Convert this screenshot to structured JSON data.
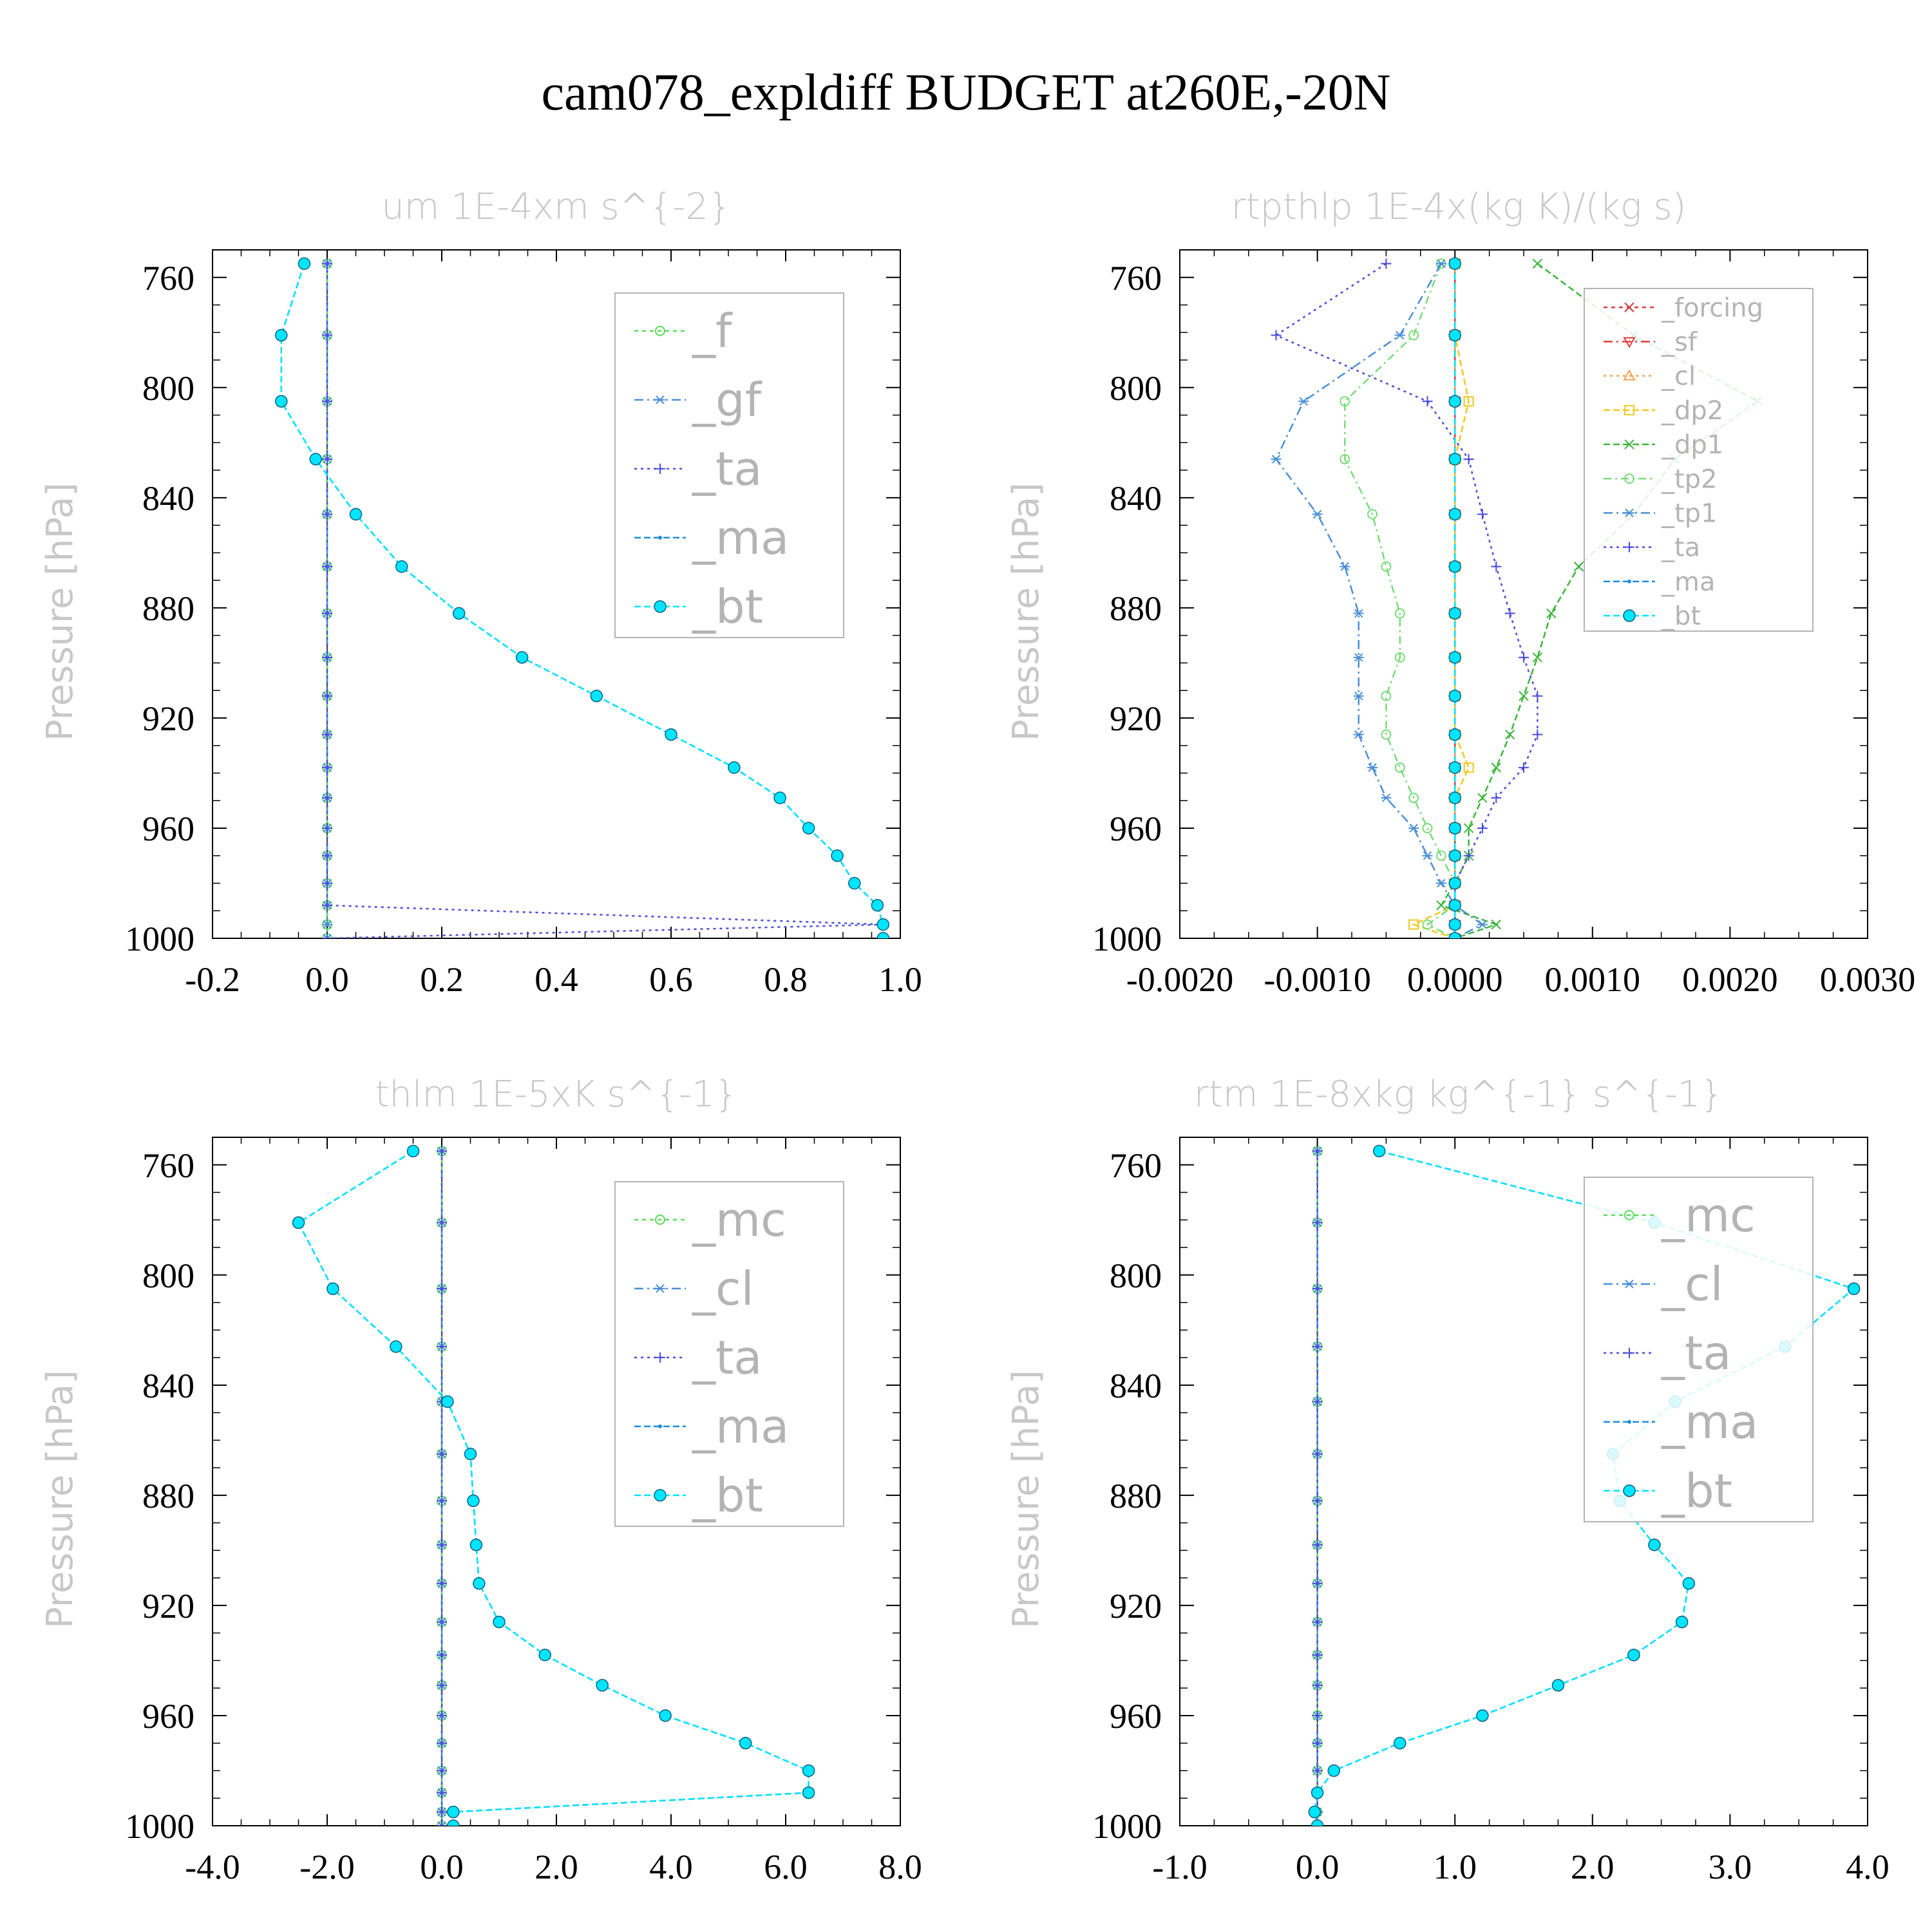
{
  "figure": {
    "title": "cam078_expldiff  BUDGET at260E,-20N"
  },
  "chart_data": [
    {
      "type": "line",
      "title": "um  1E-4xm s^{-2}",
      "ylabel": "Pressure [hPa]",
      "xlabel": "",
      "xlim": [
        -0.2,
        1.0
      ],
      "ylim": [
        1000,
        750
      ],
      "x_ticks": [
        "-0.2",
        "0.0",
        "0.2",
        "0.4",
        "0.6",
        "0.8",
        "1.0"
      ],
      "y_ticks": [
        "760",
        "800",
        "840",
        "880",
        "920",
        "960",
        "1000"
      ],
      "pressure": [
        755,
        781,
        805,
        826,
        846,
        865,
        882,
        898,
        912,
        926,
        938,
        949,
        960,
        970,
        980,
        988,
        995,
        1000
      ],
      "legend_position": "upper-right",
      "series": [
        {
          "name": "_f",
          "color": "#5adc5a",
          "marker": "circle",
          "values": [
            0,
            0,
            0,
            0,
            0,
            0,
            0,
            0,
            0,
            0,
            0,
            0,
            0,
            0,
            0,
            0,
            0,
            0
          ]
        },
        {
          "name": "_gf",
          "color": "#4a8fd6",
          "marker": "asterisk",
          "values": [
            0,
            0,
            0,
            0,
            0,
            0,
            0,
            0,
            0,
            0,
            0,
            0,
            0,
            0,
            0,
            0,
            0,
            0
          ]
        },
        {
          "name": "_ta",
          "color": "#4b4bdc",
          "marker": "plus",
          "values": [
            0,
            0,
            0,
            0,
            0,
            0,
            0,
            0,
            0,
            0,
            0,
            0,
            0,
            0,
            0,
            0,
            0.97,
            0
          ]
        },
        {
          "name": "_ma",
          "color": "#1e8cdc",
          "marker": "dot",
          "values": [
            -0.04,
            -0.08,
            -0.08,
            -0.02,
            0.05,
            0.13,
            0.23,
            0.34,
            0.47,
            0.6,
            0.71,
            0.79,
            0.84,
            0.89,
            0.92,
            0.96,
            0.97,
            0.97
          ]
        },
        {
          "name": "_bt",
          "color": "#00e5ff",
          "marker": "filled-circle",
          "values": [
            -0.04,
            -0.08,
            -0.08,
            -0.02,
            0.05,
            0.13,
            0.23,
            0.34,
            0.47,
            0.6,
            0.71,
            0.79,
            0.84,
            0.89,
            0.92,
            0.96,
            0.97,
            0.97
          ]
        }
      ]
    },
    {
      "type": "line",
      "title": "rtpthlp  1E-4x(kg K)/(kg s)",
      "ylabel": "Pressure [hPa]",
      "xlabel": "",
      "xlim": [
        -0.002,
        0.003
      ],
      "ylim": [
        1000,
        750
      ],
      "x_ticks": [
        "-0.0020",
        "-0.0010",
        "0.0000",
        "0.0010",
        "0.0020",
        "0.0030"
      ],
      "y_ticks": [
        "760",
        "800",
        "840",
        "880",
        "920",
        "960",
        "1000"
      ],
      "pressure": [
        755,
        781,
        805,
        826,
        846,
        865,
        882,
        898,
        912,
        926,
        938,
        949,
        960,
        970,
        980,
        988,
        995,
        1000
      ],
      "legend_position": "upper-right",
      "series": [
        {
          "name": "_forcing",
          "color": "#d23c3c",
          "marker": "cross",
          "values": [
            0,
            0,
            0,
            0,
            0,
            0,
            0,
            0,
            0,
            0,
            0,
            0,
            0,
            0,
            0,
            0,
            0,
            0
          ]
        },
        {
          "name": "_sf",
          "color": "#e63c3c",
          "marker": "triangle-down",
          "values": [
            0,
            0,
            0,
            0,
            0,
            0,
            0,
            0,
            0,
            0,
            0,
            0,
            0,
            0,
            0,
            0,
            0,
            0
          ]
        },
        {
          "name": "_cl",
          "color": "#f0a050",
          "marker": "triangle-up",
          "values": [
            0,
            0,
            0,
            0,
            0,
            0,
            0,
            0,
            0,
            0,
            0,
            0,
            0,
            0,
            0,
            0,
            0,
            0
          ]
        },
        {
          "name": "_dp2",
          "color": "#f0c81e",
          "marker": "square",
          "values": [
            0,
            0,
            0.0001,
            0,
            0,
            0,
            0,
            0,
            0,
            0,
            0.0001,
            0,
            0,
            0,
            0,
            0,
            -0.0003,
            0
          ]
        },
        {
          "name": "_dp1",
          "color": "#3cb43c",
          "marker": "cross",
          "values": [
            0.0006,
            0.0013,
            0.0022,
            0.0016,
            0.0013,
            0.0009,
            0.0007,
            0.0006,
            0.0005,
            0.0004,
            0.0003,
            0.0002,
            0.0001,
            0.0001,
            0,
            -0.0001,
            0.0003,
            0
          ]
        },
        {
          "name": "_tp2",
          "color": "#78dc78",
          "marker": "circle",
          "values": [
            -0.0001,
            -0.0003,
            -0.0008,
            -0.0008,
            -0.0006,
            -0.0005,
            -0.0004,
            -0.0004,
            -0.0005,
            -0.0005,
            -0.0004,
            -0.0003,
            -0.0002,
            -0.0001,
            0,
            0,
            -0.0002,
            0
          ]
        },
        {
          "name": "_tp1",
          "color": "#4a8fd6",
          "marker": "asterisk",
          "values": [
            -0.0001,
            -0.0004,
            -0.0011,
            -0.0013,
            -0.001,
            -0.0008,
            -0.0007,
            -0.0007,
            -0.0007,
            -0.0007,
            -0.0006,
            -0.0005,
            -0.0003,
            -0.0002,
            -0.0001,
            0,
            0.0002,
            0
          ]
        },
        {
          "name": "_ta",
          "color": "#4b4bdc",
          "marker": "plus",
          "values": [
            -0.0005,
            -0.0013,
            -0.0002,
            0.0001,
            0.0002,
            0.0003,
            0.0004,
            0.0005,
            0.0006,
            0.0006,
            0.0005,
            0.0003,
            0.0002,
            0.0001,
            0,
            0,
            0,
            0
          ]
        },
        {
          "name": "_ma",
          "color": "#1e8cdc",
          "marker": "dot",
          "values": [
            0,
            0,
            0,
            0,
            0,
            0,
            0,
            0,
            0,
            0,
            0,
            0,
            0,
            0,
            0,
            0,
            0,
            0
          ]
        },
        {
          "name": "_bt",
          "color": "#00e5ff",
          "marker": "filled-circle",
          "values": [
            0,
            0,
            0,
            0,
            0,
            0,
            0,
            0,
            0,
            0,
            0,
            0,
            0,
            0,
            0,
            0,
            0,
            0
          ]
        }
      ]
    },
    {
      "type": "line",
      "title": "thlm  1E-5xK s^{-1}",
      "ylabel": "Pressure [hPa]",
      "xlabel": "",
      "xlim": [
        -4.0,
        8.0
      ],
      "ylim": [
        1000,
        750
      ],
      "x_ticks": [
        "-4.0",
        "-2.0",
        "0.0",
        "2.0",
        "4.0",
        "6.0",
        "8.0"
      ],
      "y_ticks": [
        "760",
        "800",
        "840",
        "880",
        "920",
        "960",
        "1000"
      ],
      "pressure": [
        755,
        781,
        805,
        826,
        846,
        865,
        882,
        898,
        912,
        926,
        938,
        949,
        960,
        970,
        980,
        988,
        995,
        1000
      ],
      "legend_position": "upper-right",
      "series": [
        {
          "name": "_mc",
          "color": "#5adc5a",
          "marker": "circle",
          "values": [
            0,
            0,
            0,
            0,
            0,
            0,
            0,
            0,
            0,
            0,
            0,
            0,
            0,
            0,
            0,
            0,
            0,
            0
          ]
        },
        {
          "name": "_cl",
          "color": "#4a8fd6",
          "marker": "asterisk",
          "values": [
            0,
            0,
            0,
            0,
            0,
            0,
            0,
            0,
            0,
            0,
            0,
            0,
            0,
            0,
            0,
            0,
            0,
            0
          ]
        },
        {
          "name": "_ta",
          "color": "#4b4bdc",
          "marker": "plus",
          "values": [
            0,
            0,
            0,
            0,
            0,
            0,
            0,
            0,
            0,
            0,
            0,
            0,
            0,
            0,
            0,
            0,
            0,
            0
          ]
        },
        {
          "name": "_ma",
          "color": "#1e8cdc",
          "marker": "dot",
          "values": [
            -0.5,
            -2.5,
            -1.9,
            -0.8,
            0.1,
            0.5,
            0.55,
            0.6,
            0.65,
            1.0,
            1.8,
            2.8,
            3.9,
            5.3,
            6.4,
            6.4,
            0.2,
            0.2
          ]
        },
        {
          "name": "_bt",
          "color": "#00e5ff",
          "marker": "filled-circle",
          "values": [
            -0.5,
            -2.5,
            -1.9,
            -0.8,
            0.1,
            0.5,
            0.55,
            0.6,
            0.65,
            1.0,
            1.8,
            2.8,
            3.9,
            5.3,
            6.4,
            6.4,
            0.2,
            0.2
          ]
        }
      ]
    },
    {
      "type": "line",
      "title": "rtm  1E-8xkg kg^{-1} s^{-1}",
      "ylabel": "Pressure [hPa]",
      "xlabel": "",
      "xlim": [
        -1.0,
        4.0
      ],
      "ylim": [
        1000,
        750
      ],
      "x_ticks": [
        "-1.0",
        "0.0",
        "1.0",
        "2.0",
        "3.0",
        "4.0"
      ],
      "y_ticks": [
        "760",
        "800",
        "840",
        "880",
        "920",
        "960",
        "1000"
      ],
      "pressure": [
        755,
        781,
        805,
        826,
        846,
        865,
        882,
        898,
        912,
        926,
        938,
        949,
        960,
        970,
        980,
        988,
        995,
        1000
      ],
      "legend_position": "upper-right",
      "series": [
        {
          "name": "_mc",
          "color": "#5adc5a",
          "marker": "circle",
          "values": [
            0,
            0,
            0,
            0,
            0,
            0,
            0,
            0,
            0,
            0,
            0,
            0,
            0,
            0,
            0,
            0,
            0,
            0
          ]
        },
        {
          "name": "_cl",
          "color": "#4a8fd6",
          "marker": "asterisk",
          "values": [
            0,
            0,
            0,
            0,
            0,
            0,
            0,
            0,
            0,
            0,
            0,
            0,
            0,
            0,
            0,
            0,
            0,
            0
          ]
        },
        {
          "name": "_ta",
          "color": "#4b4bdc",
          "marker": "plus",
          "values": [
            0,
            0,
            0,
            0,
            0,
            0,
            0,
            0,
            0,
            0,
            0,
            0,
            0,
            0,
            0,
            0,
            0,
            0
          ]
        },
        {
          "name": "_ma",
          "color": "#1e8cdc",
          "marker": "dot",
          "values": [
            0.45,
            2.45,
            3.9,
            3.4,
            2.6,
            2.15,
            2.2,
            2.45,
            2.7,
            2.65,
            2.3,
            1.75,
            1.2,
            0.6,
            0.12,
            0.0,
            -0.02,
            0.0
          ]
        },
        {
          "name": "_bt",
          "color": "#00e5ff",
          "marker": "filled-circle",
          "values": [
            0.45,
            2.45,
            3.9,
            3.4,
            2.6,
            2.15,
            2.2,
            2.45,
            2.7,
            2.65,
            2.3,
            1.75,
            1.2,
            0.6,
            0.12,
            0.0,
            -0.02,
            0.0
          ]
        }
      ]
    }
  ]
}
